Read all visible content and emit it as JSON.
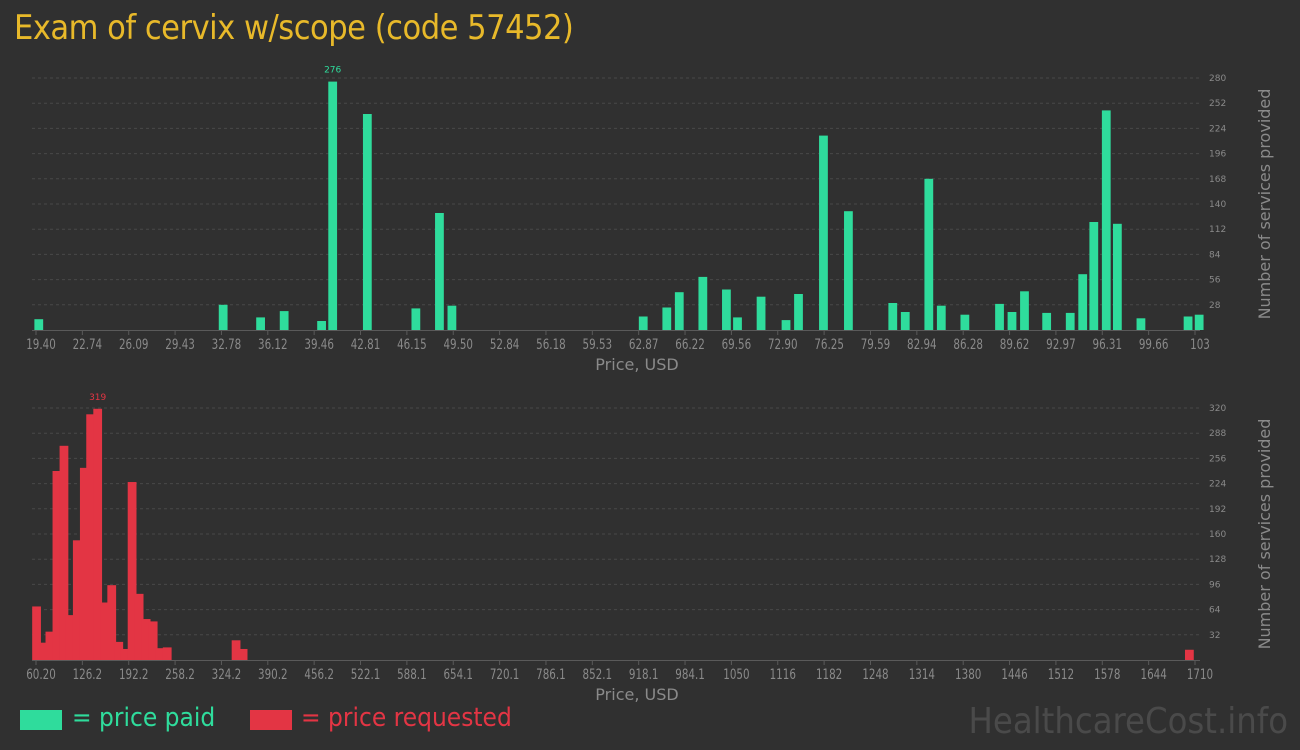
{
  "title": "Exam of cervix w/scope (code 57452)",
  "colors": {
    "background": "#303030",
    "title": "#e8b92a",
    "paid": "#2fdc9c",
    "requested": "#e33544",
    "axis_text": "#8a8a8a",
    "grid": "#484848"
  },
  "legend": {
    "paid_label": "= price paid",
    "requested_label": "= price requested"
  },
  "watermark": "HealthcareCost.info",
  "chart_data": [
    {
      "type": "bar",
      "name": "price paid",
      "xlabel": "Price, USD",
      "ylabel": "Number of services provided",
      "x_ticks": [
        "19.40",
        "22.74",
        "26.09",
        "29.43",
        "32.78",
        "36.12",
        "39.46",
        "42.81",
        "46.15",
        "49.50",
        "52.84",
        "56.18",
        "59.53",
        "62.87",
        "66.22",
        "69.56",
        "72.90",
        "76.25",
        "79.59",
        "82.94",
        "86.28",
        "89.62",
        "92.97",
        "96.31",
        "99.66",
        "103"
      ],
      "y_ticks": [
        28,
        56,
        84,
        112,
        140,
        168,
        196,
        224,
        252,
        280
      ],
      "ylim": [
        0,
        280
      ],
      "x_range": [
        19.4,
        103
      ],
      "bins": [
        {
          "x": 19.6,
          "v": 12
        },
        {
          "x": 32.9,
          "v": 28
        },
        {
          "x": 35.6,
          "v": 14
        },
        {
          "x": 37.3,
          "v": 21
        },
        {
          "x": 40.0,
          "v": 10
        },
        {
          "x": 40.8,
          "v": 276
        },
        {
          "x": 43.3,
          "v": 240
        },
        {
          "x": 46.8,
          "v": 24
        },
        {
          "x": 48.5,
          "v": 130
        },
        {
          "x": 49.4,
          "v": 27
        },
        {
          "x": 63.2,
          "v": 15
        },
        {
          "x": 64.9,
          "v": 25
        },
        {
          "x": 65.8,
          "v": 42
        },
        {
          "x": 67.5,
          "v": 59
        },
        {
          "x": 69.2,
          "v": 45
        },
        {
          "x": 70.0,
          "v": 14
        },
        {
          "x": 71.7,
          "v": 37
        },
        {
          "x": 73.5,
          "v": 11
        },
        {
          "x": 74.4,
          "v": 40
        },
        {
          "x": 76.2,
          "v": 216
        },
        {
          "x": 78.0,
          "v": 132
        },
        {
          "x": 81.2,
          "v": 30
        },
        {
          "x": 82.1,
          "v": 20
        },
        {
          "x": 83.8,
          "v": 168
        },
        {
          "x": 84.7,
          "v": 27
        },
        {
          "x": 86.4,
          "v": 17
        },
        {
          "x": 88.9,
          "v": 29
        },
        {
          "x": 89.8,
          "v": 20
        },
        {
          "x": 90.7,
          "v": 43
        },
        {
          "x": 92.3,
          "v": 19
        },
        {
          "x": 94.0,
          "v": 19
        },
        {
          "x": 94.9,
          "v": 62
        },
        {
          "x": 95.7,
          "v": 120
        },
        {
          "x": 96.6,
          "v": 244
        },
        {
          "x": 97.4,
          "v": 118
        },
        {
          "x": 99.1,
          "v": 13
        },
        {
          "x": 102.5,
          "v": 15
        },
        {
          "x": 103.3,
          "v": 17
        }
      ],
      "max_label": "276"
    },
    {
      "type": "bar",
      "name": "price requested",
      "xlabel": "Price, USD",
      "ylabel": "Number of services provided",
      "x_ticks": [
        "60.20",
        "126.2",
        "192.2",
        "258.2",
        "324.2",
        "390.2",
        "456.2",
        "522.1",
        "588.1",
        "654.1",
        "720.1",
        "786.1",
        "852.1",
        "918.1",
        "984.1",
        "1050",
        "1116",
        "1182",
        "1248",
        "1314",
        "1380",
        "1446",
        "1512",
        "1578",
        "1644",
        "1710"
      ],
      "y_ticks": [
        32,
        64,
        96,
        128,
        160,
        192,
        224,
        256,
        288,
        320
      ],
      "ylim": [
        0,
        320
      ],
      "x_range": [
        60.2,
        1710
      ],
      "bins": [
        {
          "x": 61,
          "v": 68
        },
        {
          "x": 71,
          "v": 22
        },
        {
          "x": 80,
          "v": 36
        },
        {
          "x": 90,
          "v": 240
        },
        {
          "x": 100,
          "v": 272
        },
        {
          "x": 109,
          "v": 57
        },
        {
          "x": 119,
          "v": 152
        },
        {
          "x": 129,
          "v": 244
        },
        {
          "x": 138,
          "v": 312
        },
        {
          "x": 148,
          "v": 319
        },
        {
          "x": 158,
          "v": 73
        },
        {
          "x": 168,
          "v": 95
        },
        {
          "x": 178,
          "v": 23
        },
        {
          "x": 187,
          "v": 14
        },
        {
          "x": 197,
          "v": 226
        },
        {
          "x": 207,
          "v": 84
        },
        {
          "x": 217,
          "v": 52
        },
        {
          "x": 227,
          "v": 49
        },
        {
          "x": 237,
          "v": 15
        },
        {
          "x": 247,
          "v": 16
        },
        {
          "x": 345,
          "v": 25
        },
        {
          "x": 355,
          "v": 14
        },
        {
          "x": 1702,
          "v": 13
        }
      ],
      "max_label": "319"
    }
  ]
}
